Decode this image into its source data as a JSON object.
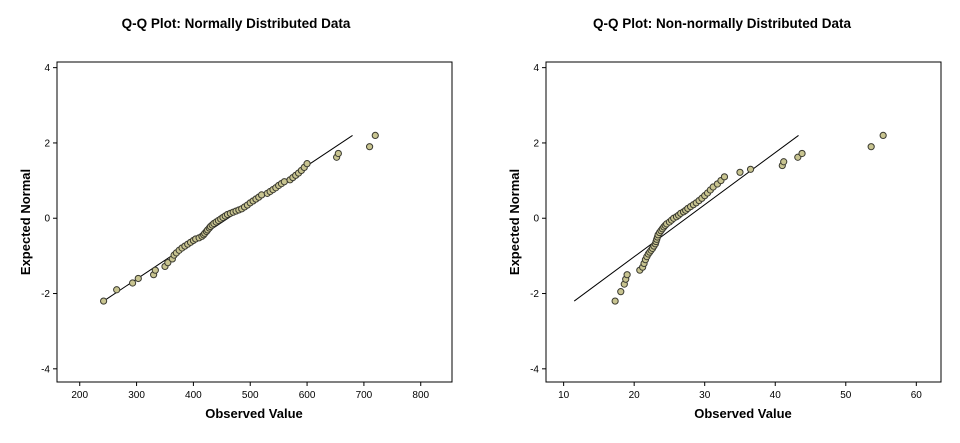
{
  "chart_data": [
    {
      "type": "scatter",
      "title": "Q-Q Plot: Normally Distributed Data",
      "xlabel": "Observed Value",
      "ylabel": "Expected Normal",
      "xlim": [
        160,
        855
      ],
      "ylim": [
        -4.35,
        4.15
      ],
      "xticks": [
        200,
        300,
        400,
        500,
        600,
        700,
        800
      ],
      "yticks": [
        -4,
        -2,
        0,
        2,
        4
      ],
      "grid": false,
      "point_color": "#c8c490",
      "reference_line": {
        "x": [
          242,
          680
        ],
        "y": [
          -2.2,
          2.2
        ]
      },
      "x": [
        242,
        265,
        293,
        303,
        330,
        333,
        350,
        355,
        363,
        366,
        370,
        375,
        380,
        385,
        390,
        395,
        400,
        404,
        410,
        415,
        418,
        420,
        423,
        425,
        428,
        430,
        433,
        436,
        440,
        444,
        448,
        452,
        456,
        460,
        465,
        470,
        475,
        480,
        485,
        490,
        495,
        500,
        505,
        510,
        515,
        520,
        530,
        535,
        540,
        545,
        550,
        555,
        560,
        570,
        575,
        580,
        585,
        590,
        595,
        600,
        652,
        655,
        710,
        720
      ],
      "y": [
        -2.2,
        -1.9,
        -1.72,
        -1.6,
        -1.5,
        -1.38,
        -1.28,
        -1.18,
        -1.08,
        -0.98,
        -0.92,
        -0.85,
        -0.79,
        -0.74,
        -0.69,
        -0.64,
        -0.59,
        -0.55,
        -0.52,
        -0.48,
        -0.44,
        -0.4,
        -0.35,
        -0.31,
        -0.26,
        -0.22,
        -0.18,
        -0.14,
        -0.1,
        -0.06,
        -0.02,
        0.02,
        0.06,
        0.1,
        0.13,
        0.16,
        0.19,
        0.22,
        0.25,
        0.3,
        0.35,
        0.41,
        0.46,
        0.51,
        0.56,
        0.62,
        0.66,
        0.71,
        0.76,
        0.81,
        0.87,
        0.92,
        0.97,
        1.02,
        1.08,
        1.14,
        1.2,
        1.27,
        1.35,
        1.45,
        1.62,
        1.72,
        1.9,
        2.2
      ]
    },
    {
      "type": "scatter",
      "title": "Q-Q Plot: Non-normally Distributed Data",
      "xlabel": "Observed Value",
      "ylabel": "Expected Normal",
      "xlim": [
        7.5,
        63.5
      ],
      "ylim": [
        -4.35,
        4.15
      ],
      "xticks": [
        10,
        20,
        30,
        40,
        50,
        60
      ],
      "yticks": [
        -4,
        -2,
        0,
        2,
        4
      ],
      "grid": false,
      "point_color": "#c8c490",
      "reference_line": {
        "x": [
          11.5,
          43.3
        ],
        "y": [
          -2.2,
          2.2
        ]
      },
      "x": [
        17.3,
        18.1,
        18.6,
        18.8,
        19.0,
        20.8,
        21.2,
        21.4,
        21.6,
        21.8,
        22.0,
        22.2,
        22.4,
        22.6,
        22.8,
        23.0,
        23.1,
        23.2,
        23.3,
        23.4,
        23.6,
        23.8,
        24.0,
        24.2,
        24.4,
        24.6,
        25.0,
        25.3,
        25.6,
        26.0,
        26.3,
        26.6,
        27.0,
        27.3,
        27.6,
        28.0,
        28.4,
        28.8,
        29.2,
        29.6,
        30.0,
        30.4,
        30.8,
        31.2,
        31.8,
        32.3,
        32.8,
        35.0,
        36.5,
        41.0,
        41.2,
        43.2,
        43.8,
        53.6,
        55.3
      ],
      "y": [
        -2.2,
        -1.95,
        -1.75,
        -1.62,
        -1.5,
        -1.38,
        -1.3,
        -1.2,
        -1.1,
        -1.02,
        -0.95,
        -0.9,
        -0.85,
        -0.8,
        -0.74,
        -0.68,
        -0.62,
        -0.56,
        -0.5,
        -0.44,
        -0.38,
        -0.33,
        -0.28,
        -0.23,
        -0.19,
        -0.15,
        -0.1,
        -0.05,
        0.0,
        0.04,
        0.08,
        0.13,
        0.17,
        0.21,
        0.26,
        0.31,
        0.36,
        0.41,
        0.47,
        0.53,
        0.6,
        0.67,
        0.75,
        0.83,
        0.91,
        1.0,
        1.1,
        1.22,
        1.3,
        1.4,
        1.5,
        1.62,
        1.72,
        1.9,
        2.2
      ]
    }
  ]
}
